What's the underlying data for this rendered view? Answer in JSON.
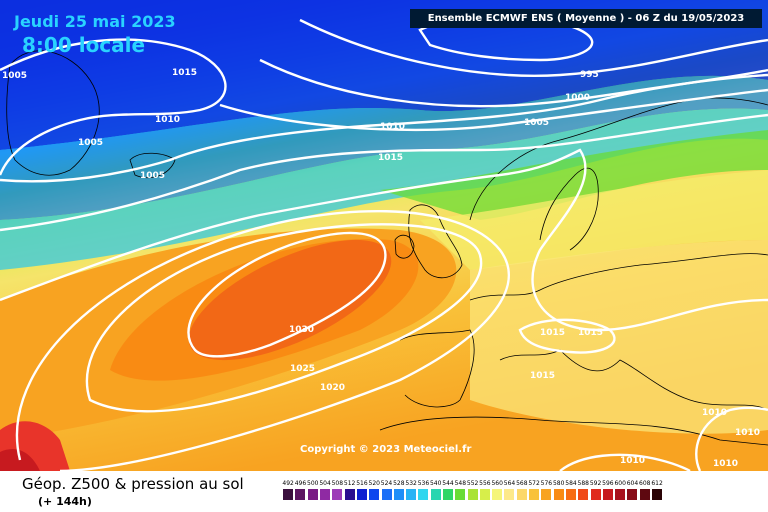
{
  "overlay": {
    "date": "Jeudi 25 mai 2023",
    "time": "8:00 locale"
  },
  "header": {
    "text": "Ensemble ECMWF ENS  ( Moyenne )  -  06 Z du 19/05/2023"
  },
  "copyright": "Copyright © 2023 Meteociel.fr",
  "footer": {
    "title": "Géop. Z500 & pression au sol",
    "subtitle": "(+ 144h)"
  },
  "isobar_labels": [
    "1005",
    "1015",
    "1010",
    "1005",
    "1005",
    "995",
    "1000",
    "1005",
    "1010",
    "1015",
    "1030",
    "1025",
    "1020",
    "1015",
    "1015",
    "1015",
    "1010",
    "1010",
    "1010",
    "1010"
  ],
  "legend": {
    "values": [
      "492",
      "496",
      "500",
      "504",
      "508",
      "512",
      "516",
      "520",
      "524",
      "528",
      "532",
      "536",
      "540",
      "544",
      "548",
      "552",
      "556",
      "560",
      "564",
      "568",
      "572",
      "576",
      "580",
      "584",
      "588",
      "592",
      "596",
      "600",
      "604",
      "608",
      "612"
    ],
    "colors": [
      "#3a0f3d",
      "#5c1561",
      "#7a1c85",
      "#8f2aa3",
      "#9d3cb8",
      "#2a0d8f",
      "#0d1fd1",
      "#0e46ee",
      "#1a6ef7",
      "#1f8ef8",
      "#27b3f5",
      "#2fd6ef",
      "#28d6b0",
      "#2fd667",
      "#69dc35",
      "#a9e335",
      "#d7ee4a",
      "#f5f57a",
      "#fde98a",
      "#fcd86a",
      "#f9c23a",
      "#f8a321",
      "#f98b13",
      "#f76c13",
      "#f04a18",
      "#e02a1c",
      "#c71a1f",
      "#a8111d",
      "#880c18",
      "#5e0810",
      "#2a0406"
    ]
  },
  "colors": {
    "high": "#f26816",
    "mid": "#f8a321",
    "low": "#0e46ee",
    "isobar": "#ffffff",
    "coast": "#000000"
  }
}
